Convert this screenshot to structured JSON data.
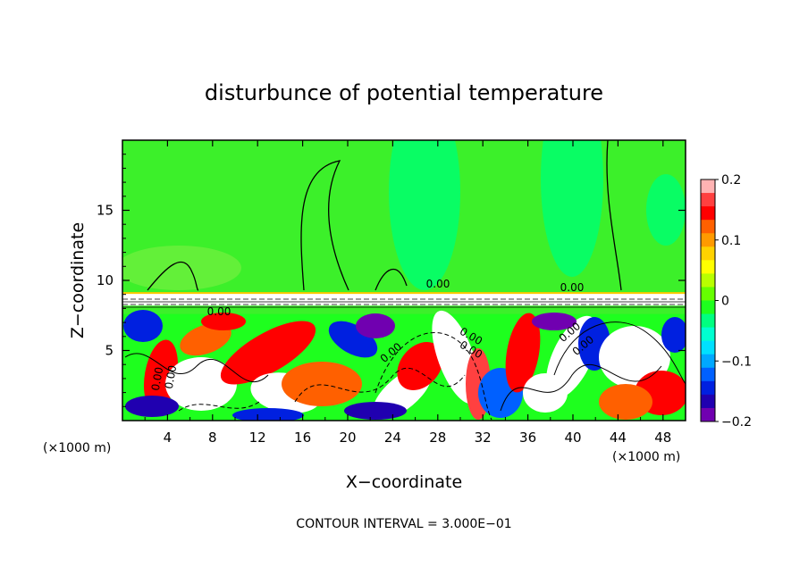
{
  "chart_data": {
    "type": "heatmap",
    "title": "disturbunce of potential temperature",
    "xlabel": "X−coordinate",
    "ylabel": "Z−coordinate",
    "x_unit_left": "(×1000 m)",
    "x_unit_right": "(×1000 m)",
    "xlim": [
      0,
      50
    ],
    "ylim": [
      0,
      20
    ],
    "xticks": [
      4,
      8,
      12,
      16,
      20,
      24,
      28,
      32,
      36,
      40,
      44,
      48
    ],
    "yticks": [
      5,
      10,
      15
    ],
    "footer": "CONTOUR INTERVAL = 3.000E−01",
    "colorbar": {
      "range": [
        -0.2,
        0.2
      ],
      "tick_values": [
        0.2,
        0.1,
        0,
        -0.1,
        -0.2
      ],
      "tick_labels": [
        "0.2",
        "0.1",
        "0",
        "−0.1",
        "−0.2"
      ],
      "colors": [
        "#ffb3b3",
        "#ff4040",
        "#ff0000",
        "#ff6000",
        "#ff9a00",
        "#ffd200",
        "#ffff00",
        "#b8ff00",
        "#66ff00",
        "#1eff1e",
        "#00ff80",
        "#00ffd0",
        "#00e0ff",
        "#00a8ff",
        "#0060ff",
        "#0020e0",
        "#2000b0",
        "#7000b0"
      ]
    },
    "field_colors": {
      "upper": "#3cf02a",
      "upper_patch": "#00ff6e",
      "upper_light": "#6af03c",
      "cap": "#ffc800",
      "neutral": "#ffffff"
    },
    "contour_labels": [
      "0.00",
      "0.00",
      "0.00",
      "0.00",
      "0.00",
      "0.00",
      "0.00",
      "0.00",
      "0.00",
      "0.00"
    ]
  }
}
